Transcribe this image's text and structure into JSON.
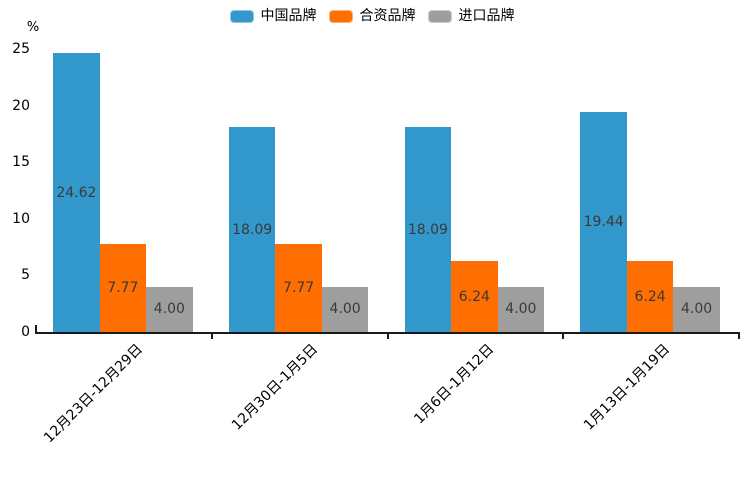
{
  "chart_data": {
    "type": "bar",
    "title": "",
    "ylabel": "%",
    "xlabel": "",
    "categories": [
      "12月23日-12月29日",
      "12月30日-1月5日",
      "1月6日-1月12日",
      "1月13日-1月19日"
    ],
    "series": [
      {
        "name": "中国品牌",
        "color": "#3398CC",
        "values": [
          24.62,
          18.09,
          18.09,
          19.44
        ]
      },
      {
        "name": "合资品牌",
        "color": "#FF6E00",
        "values": [
          7.77,
          7.77,
          6.24,
          6.24
        ]
      },
      {
        "name": "进口品牌",
        "color": "#9E9E9E",
        "values": [
          4.0,
          4.0,
          4.0,
          4.0
        ]
      }
    ],
    "y_ticks": [
      0,
      5,
      10,
      15,
      20,
      25
    ],
    "ylim": [
      0,
      25
    ],
    "grid": false,
    "legend_position": "top-center",
    "value_labels": "inside bars, centered, 2 decimal places"
  },
  "colors": {
    "axis_line": "#1A1A1A",
    "tick_text": "#000000",
    "value_label_text": "#3A3A3A"
  }
}
